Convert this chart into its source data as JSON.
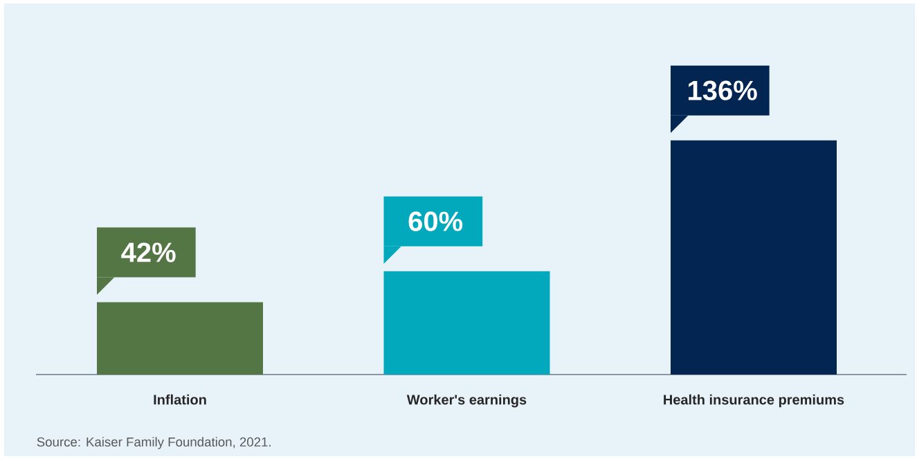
{
  "chart_data": {
    "type": "bar",
    "categories": [
      "Inflation",
      "Worker's earnings",
      "Health insurance premiums"
    ],
    "values": [
      42,
      60,
      136
    ],
    "value_labels": [
      "42%",
      "60%",
      "136%"
    ],
    "colors": [
      "#537644",
      "#02a9bd",
      "#022552"
    ],
    "annotations": [
      "Source: Kaiser Family Foundation, 2021."
    ]
  }
}
